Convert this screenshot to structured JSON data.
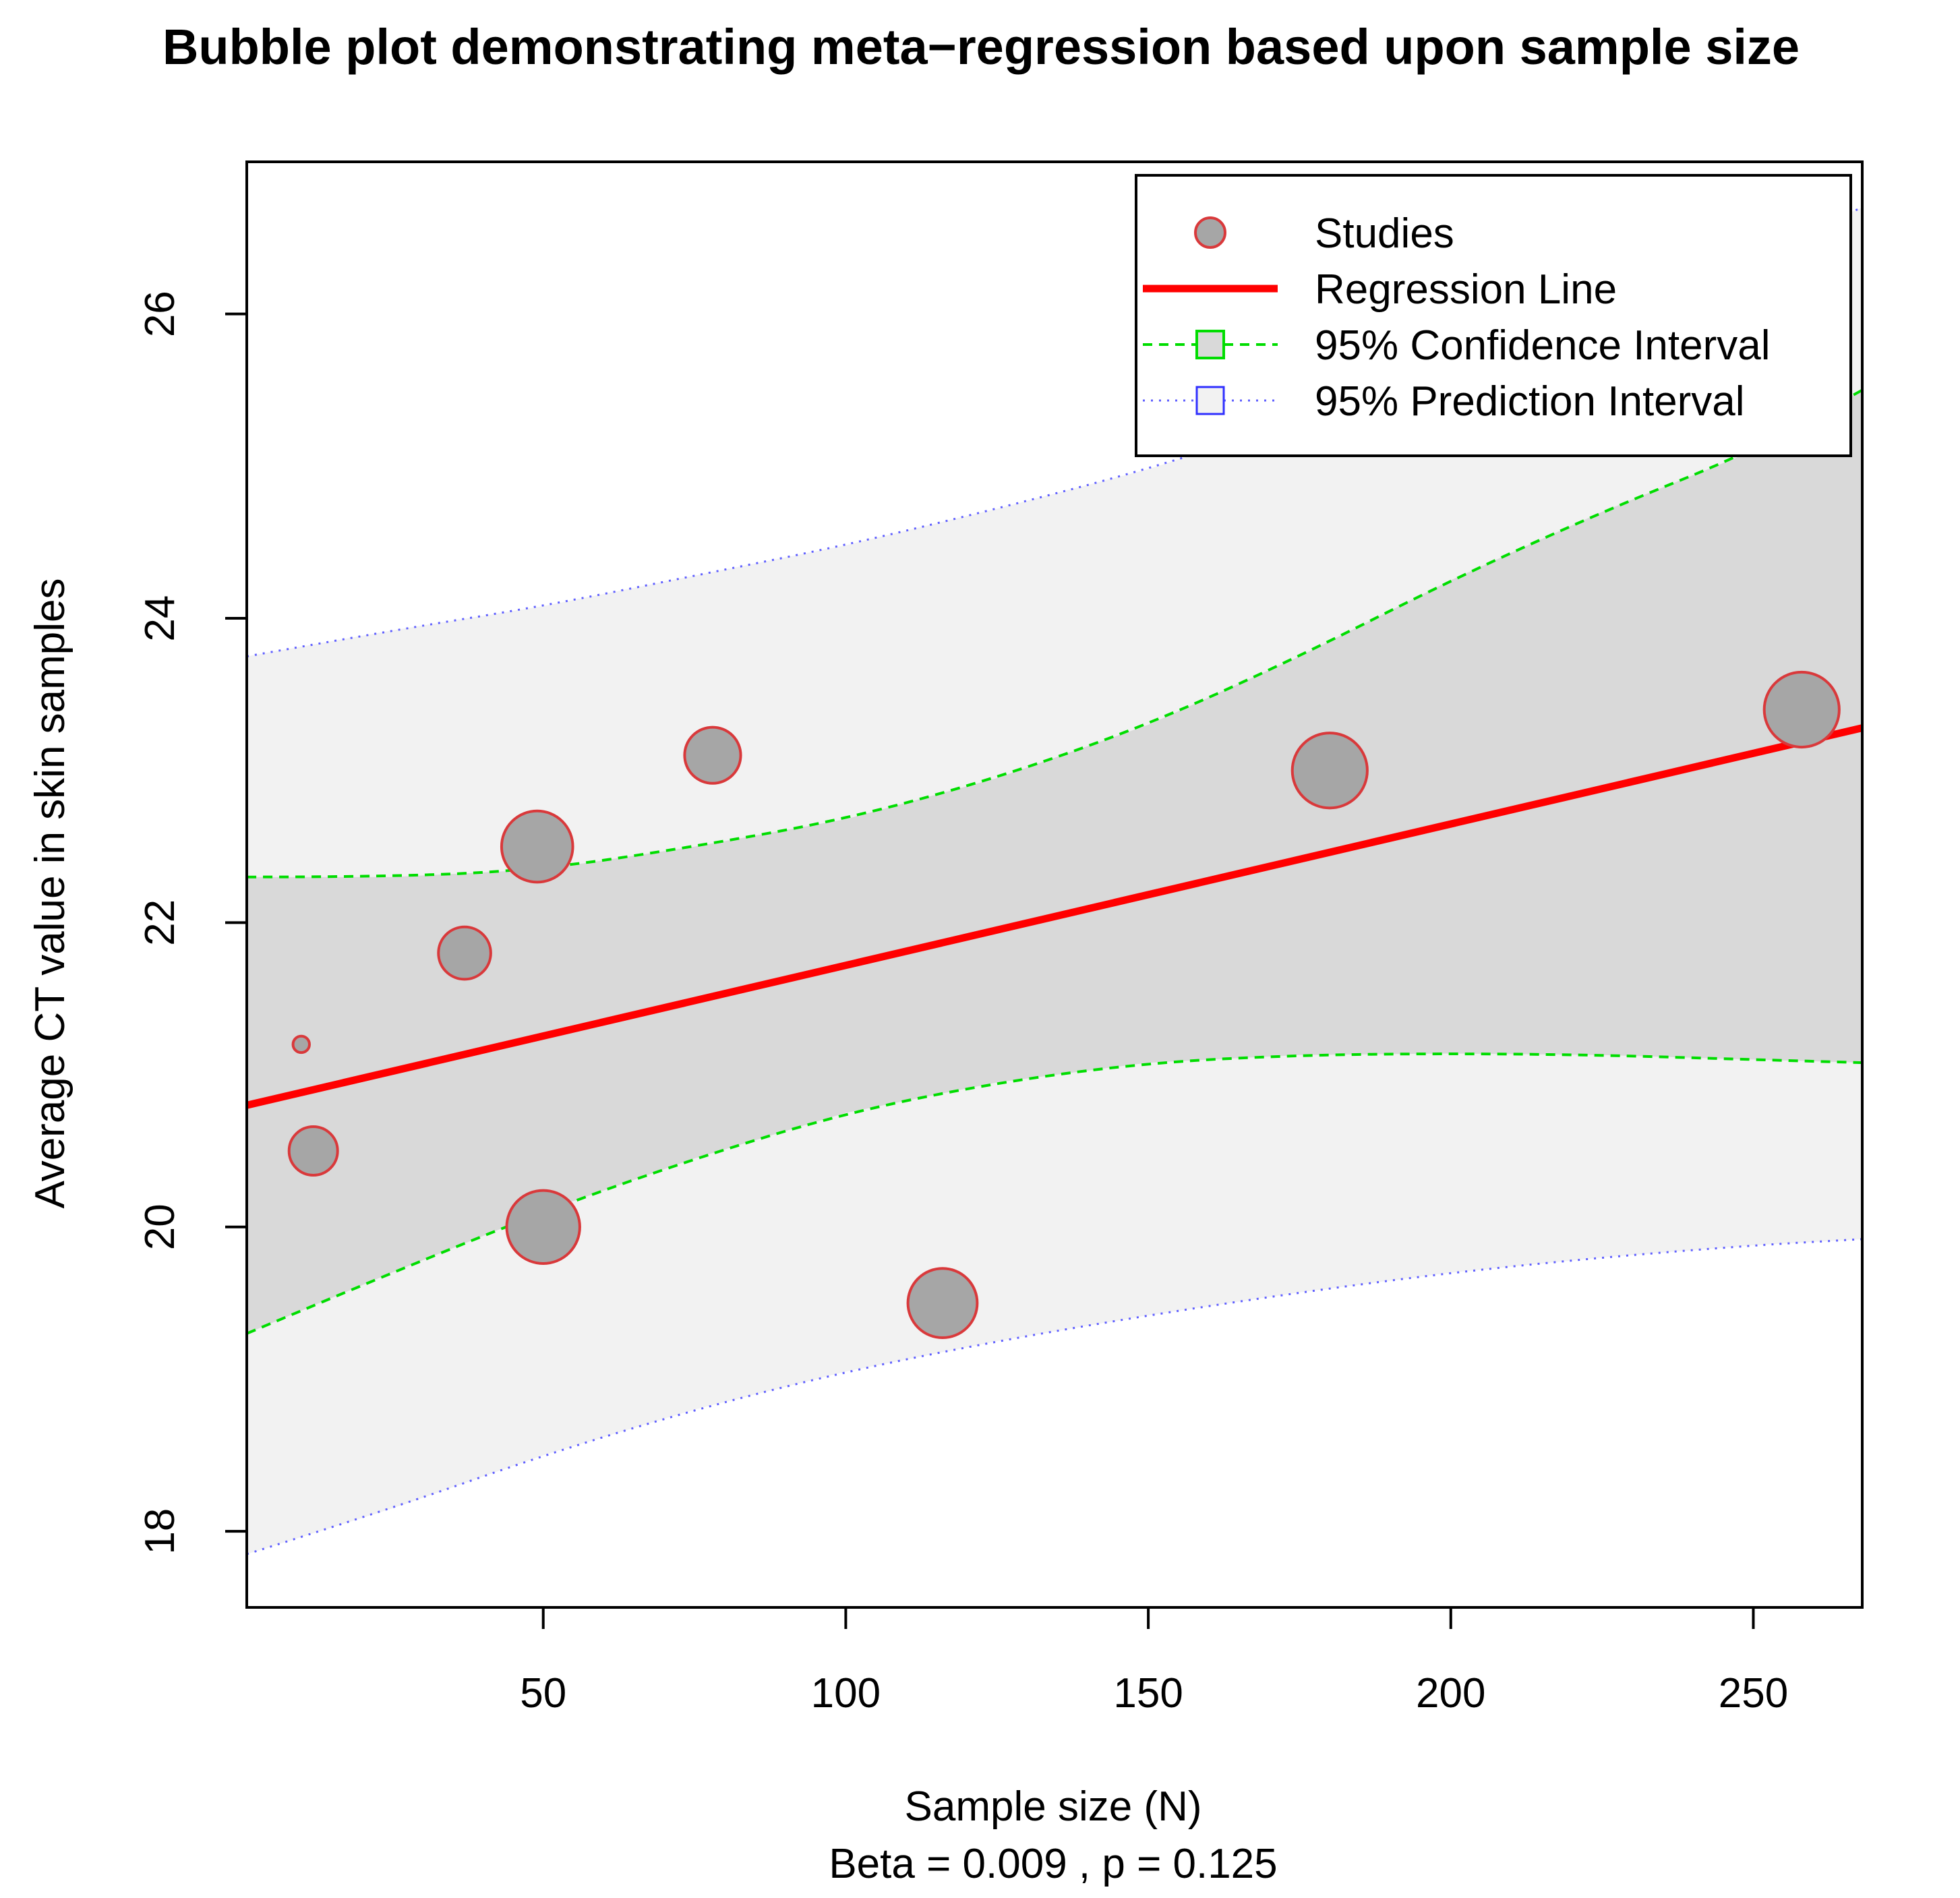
{
  "chart_data": {
    "type": "scatter",
    "title": "Bubble plot demonstrating meta−regression based upon sample size",
    "xlabel": "Sample size (N)",
    "subtitle": "Beta =  0.009 , p =  0.125",
    "ylabel": "Average CT value in skin samples",
    "xlim": [
      1,
      268
    ],
    "ylim": [
      17.5,
      27
    ],
    "x_ticks": [
      50,
      100,
      150,
      200,
      250
    ],
    "y_ticks": [
      18,
      20,
      22,
      24,
      26
    ],
    "x_tick_labels": [
      "50",
      "100",
      "150",
      "200",
      "250"
    ],
    "y_tick_labels": [
      "18",
      "20",
      "22",
      "24",
      "26"
    ],
    "studies": [
      {
        "x": 10,
        "y": 21.2,
        "weight": 0.15
      },
      {
        "x": 12,
        "y": 20.5,
        "weight": 1.0
      },
      {
        "x": 37,
        "y": 21.8,
        "weight": 1.1
      },
      {
        "x": 49,
        "y": 22.5,
        "weight": 1.6
      },
      {
        "x": 50,
        "y": 20.0,
        "weight": 1.65
      },
      {
        "x": 78,
        "y": 23.1,
        "weight": 1.2
      },
      {
        "x": 116,
        "y": 19.5,
        "weight": 1.55
      },
      {
        "x": 180,
        "y": 23.0,
        "weight": 1.7
      },
      {
        "x": 258,
        "y": 23.4,
        "weight": 1.7
      }
    ],
    "regression_line": {
      "x": [
        1,
        268
      ],
      "y": [
        20.8,
        23.28
      ]
    },
    "confidence_interval": {
      "x": [
        1,
        25,
        50,
        75,
        100,
        125,
        150,
        175,
        200,
        225,
        250,
        268
      ],
      "upper": [
        22.3,
        22.3,
        22.35,
        22.5,
        22.68,
        22.95,
        23.3,
        23.75,
        24.25,
        24.7,
        25.1,
        25.5
      ],
      "lower": [
        19.3,
        19.7,
        20.1,
        20.45,
        20.75,
        20.95,
        21.08,
        21.13,
        21.14,
        21.13,
        21.1,
        21.08
      ]
    },
    "prediction_interval": {
      "x": [
        1,
        25,
        50,
        75,
        100,
        125,
        150,
        175,
        200,
        225,
        250,
        268
      ],
      "upper": [
        23.75,
        23.92,
        24.08,
        24.28,
        24.48,
        24.72,
        24.98,
        25.3,
        25.65,
        26.0,
        26.4,
        26.7
      ],
      "lower": [
        17.85,
        18.15,
        18.5,
        18.8,
        19.05,
        19.25,
        19.42,
        19.57,
        19.7,
        19.8,
        19.88,
        19.92
      ]
    },
    "legend": {
      "placement": "top-right",
      "entries": [
        {
          "label": "Studies",
          "kind": "point"
        },
        {
          "label": "Regression Line",
          "kind": "solid"
        },
        {
          "label": "95% Confidence Interval",
          "kind": "dashed"
        },
        {
          "label": "95% Prediction Interval",
          "kind": "dotted"
        }
      ]
    },
    "colors": {
      "point_fill": "#a6a6a6",
      "point_stroke": "#d9393b",
      "regression": "#ff0000",
      "confidence": "#00dd00",
      "prediction": "#6060ff",
      "confidence_band": "#d9d9d9",
      "prediction_band": "#f2f2f2"
    }
  }
}
